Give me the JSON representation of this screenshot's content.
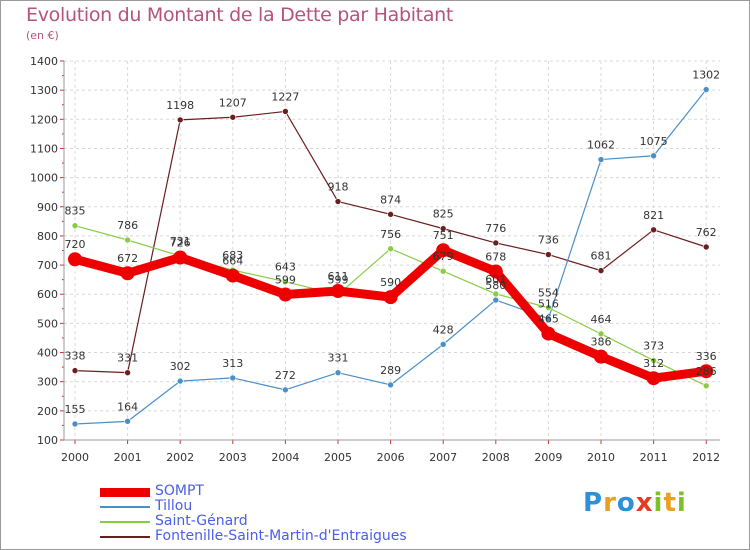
{
  "header": {
    "title": "Evolution du Montant de la Dette par Habitant",
    "unit": "(en €)"
  },
  "logo": {
    "letters": [
      "P",
      "r",
      "o",
      "x",
      "i",
      "t",
      "i"
    ],
    "colors": [
      "#2f8fd8",
      "#e8a020",
      "#2f8fd8",
      "#e83a20",
      "#7dc12a",
      "#e8a020",
      "#7dc12a"
    ]
  },
  "chart_data": {
    "type": "line",
    "title": "Evolution du Montant de la Dette par Habitant",
    "ylabel": "(en €)",
    "xlabel": "",
    "x": [
      "2000",
      "2001",
      "2002",
      "2003",
      "2004",
      "2005",
      "2006",
      "2007",
      "2008",
      "2009",
      "2010",
      "2011",
      "2012"
    ],
    "ylim": [
      100,
      1400
    ],
    "yticks": [
      "100",
      "200",
      "300",
      "400",
      "500",
      "600",
      "700",
      "800",
      "900",
      "1000",
      "1100",
      "1200",
      "1300",
      "1400"
    ],
    "grid": true,
    "legend_position": "bottom-left",
    "series": [
      {
        "name": "SOMPT",
        "color": "#ee0000",
        "values": [
          720,
          672,
          726,
          664,
          599,
          611,
          590,
          751,
          678,
          465,
          386,
          312,
          336
        ]
      },
      {
        "name": "Tillou",
        "color": "#4a8fc8",
        "values": [
          155,
          164,
          302,
          313,
          272,
          331,
          289,
          428,
          580,
          516,
          1062,
          1075,
          1302
        ]
      },
      {
        "name": "Saint-Génard",
        "color": "#88cc44",
        "values": [
          835,
          786,
          731,
          683,
          643,
          599,
          756,
          679,
          601,
          554,
          464,
          373,
          286
        ]
      },
      {
        "name": "Fontenille-Saint-Martin-d'Entraigues",
        "color": "#6b1e1e",
        "values": [
          338,
          331,
          1198,
          1207,
          1227,
          918,
          874,
          825,
          776,
          736,
          681,
          821,
          762
        ]
      }
    ]
  }
}
